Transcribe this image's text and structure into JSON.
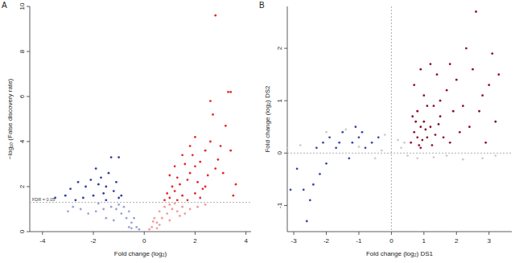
{
  "chart_data": [
    {
      "type": "scatter",
      "title": "A",
      "x_label": "Fold change (log₂)",
      "y_label": "−log₁₀ (False discovery rate)",
      "xlim": [
        -4.5,
        4.2
      ],
      "ylim": [
        0,
        10
      ],
      "xticks": [
        -4,
        -2,
        0,
        2,
        4
      ],
      "yticks": [
        0,
        2,
        4,
        6,
        8,
        10
      ],
      "marker": "circle",
      "hlines": [
        {
          "value": 1.3,
          "label": "FDR = 0.05"
        }
      ],
      "series": [
        {
          "color": "#e8262b",
          "x": [
            1.0,
            1.2,
            1.4,
            1.5,
            1.7,
            1.8,
            2.0,
            1.9,
            2.2,
            2.4,
            2.1,
            2.6,
            2.5,
            1.3,
            1.6,
            1.1,
            0.9,
            2.3,
            2.7,
            2.8,
            2.6,
            3.3,
            3.4,
            3.2,
            3.0,
            2.9,
            3.1,
            2.0,
            1.8,
            1.5,
            1.2,
            1.0,
            3.5,
            3.6,
            2.2,
            1.7,
            2.4,
            0.8,
            1.3,
            2.0,
            3.4,
            2.8
          ],
          "values": [
            1.5,
            1.8,
            2.1,
            1.6,
            2.3,
            2.6,
            2.9,
            3.4,
            3.1,
            3.6,
            2.2,
            4.0,
            2.5,
            2.4,
            3.0,
            2.0,
            1.7,
            1.9,
            5.2,
            9.6,
            5.8,
            6.2,
            6.2,
            4.7,
            3.8,
            3.2,
            2.6,
            4.2,
            3.8,
            3.4,
            2.9,
            2.5,
            1.6,
            2.1,
            1.5,
            1.4,
            2.0,
            1.4,
            1.4,
            1.7,
            3.6,
            2.8
          ]
        },
        {
          "color": "#f29a9c",
          "x": [
            0.3,
            0.5,
            0.7,
            0.9,
            1.1,
            0.4,
            0.6,
            0.8,
            1.0,
            1.3,
            1.5,
            1.8,
            2.1,
            0.2,
            0.5,
            1.0,
            1.4,
            0.6,
            0.35,
            1.2,
            1.6,
            2.4
          ],
          "values": [
            0.2,
            0.4,
            0.6,
            0.8,
            1.0,
            0.6,
            0.9,
            1.1,
            1.2,
            0.9,
            1.1,
            1.0,
            1.1,
            0.1,
            0.15,
            0.5,
            0.7,
            0.3,
            0.45,
            1.25,
            0.8,
            1.2
          ]
        },
        {
          "color": "#2f3fa3",
          "x": [
            -1.0,
            -1.2,
            -1.5,
            -1.7,
            -1.9,
            -2.1,
            -1.4,
            -1.6,
            -2.3,
            -2.6,
            -2.9,
            -3.5,
            -1.3,
            -1.0,
            -2.0,
            -1.8,
            -1.1,
            -0.9,
            -2.4,
            -1.5,
            -2.7,
            -3.1
          ],
          "values": [
            1.5,
            1.8,
            2.0,
            2.4,
            2.8,
            2.3,
            2.6,
            1.7,
            2.0,
            2.2,
            1.9,
            1.5,
            3.3,
            3.3,
            1.6,
            2.1,
            2.2,
            1.6,
            1.5,
            1.4,
            1.4,
            1.6
          ]
        },
        {
          "color": "#9aa2d6",
          "x": [
            -0.3,
            -0.5,
            -0.7,
            -0.9,
            -1.1,
            -1.3,
            -1.6,
            -1.9,
            -2.2,
            -0.4,
            -0.6,
            -0.8,
            -1.0,
            -1.5,
            -2.5,
            -2.8,
            -0.2,
            -0.6,
            -1.2,
            -3.0,
            -1.8,
            -0.5
          ],
          "values": [
            0.2,
            0.4,
            0.6,
            0.8,
            1.0,
            1.1,
            1.0,
            0.9,
            0.8,
            0.6,
            0.9,
            1.1,
            1.2,
            0.6,
            1.0,
            1.1,
            0.1,
            0.2,
            0.5,
            0.9,
            1.25,
            0.15
          ]
        }
      ]
    },
    {
      "type": "scatter",
      "title": "B",
      "x_label": "Fold change (log₂) DS1",
      "y_label": "Fold change (log₂) DS2",
      "xlim": [
        -3.2,
        3.7
      ],
      "ylim": [
        -1.5,
        2.8
      ],
      "xticks": [
        -3,
        -2,
        -1,
        0,
        1,
        2,
        3
      ],
      "yticks": [
        -1,
        0,
        1,
        2
      ],
      "marker": "circle",
      "hlines": [
        {
          "value": 0
        }
      ],
      "vlines": [
        {
          "value": 0
        }
      ],
      "series": [
        {
          "color": "#8b1230",
          "x": [
            0.6,
            0.7,
            0.8,
            0.9,
            1.0,
            1.1,
            0.8,
            0.9,
            1.2,
            1.3,
            1.5,
            1.0,
            0.7,
            1.4,
            1.7,
            2.0,
            2.2,
            2.5,
            2.6,
            2.8,
            3.0,
            3.2,
            2.4,
            1.9,
            1.6,
            1.8,
            2.1,
            1.2,
            0.9,
            1.1,
            0.75,
            1.35,
            2.9,
            3.3,
            1.5,
            0.95,
            1.05,
            0.85,
            2.3,
            1.8,
            3.1,
            2.7,
            1.25,
            0.65,
            1.45
          ],
          "values": [
            0.2,
            0.4,
            0.3,
            0.5,
            0.6,
            0.3,
            0.8,
            0.1,
            0.5,
            0.9,
            0.7,
            1.1,
            1.3,
            1.5,
            1.2,
            1.4,
            0.9,
            1.6,
            2.7,
            1.1,
            1.3,
            0.6,
            0.5,
            0.8,
            0.3,
            0.2,
            0.4,
            1.7,
            1.6,
            0.9,
            0.6,
            0.35,
            0.2,
            1.5,
            1.0,
            0.25,
            0.45,
            0.15,
            2.0,
            1.7,
            1.9,
            0.8,
            0.15,
            0.7,
            0.55
          ]
        },
        {
          "color": "#3a48a8",
          "x": [
            -0.4,
            -0.6,
            -0.8,
            -1.0,
            -1.2,
            -1.5,
            -1.7,
            -1.9,
            -2.0,
            -2.2,
            -2.4,
            -2.5,
            -2.7,
            -2.6,
            -2.9,
            -3.1,
            -1.3,
            -1.6,
            -0.9,
            -2.3,
            -1.1,
            -2.1
          ],
          "values": [
            0.3,
            0.2,
            0.1,
            0.3,
            0.2,
            0.4,
            0.1,
            0.3,
            -0.2,
            -0.4,
            -0.6,
            -0.9,
            -0.7,
            -1.3,
            -0.3,
            -0.7,
            -0.1,
            0.2,
            0.4,
            0.1,
            0.5,
            0.2
          ]
        },
        {
          "color": "#cccccc",
          "x": [
            -3.2,
            -2.8,
            -1.4,
            -0.3,
            -0.2,
            0.3,
            0.5,
            0.8,
            1.3,
            1.7,
            2.2,
            2.8,
            3.2,
            0.4,
            -1.0,
            -2.0,
            0.2,
            -0.5
          ],
          "values": [
            0.1,
            0.15,
            0.45,
            0.05,
            0.35,
            0.1,
            -0.05,
            -0.1,
            -0.08,
            -0.05,
            -0.12,
            -0.1,
            -0.05,
            0.2,
            0.12,
            0.4,
            0.25,
            -0.1
          ]
        }
      ]
    }
  ]
}
